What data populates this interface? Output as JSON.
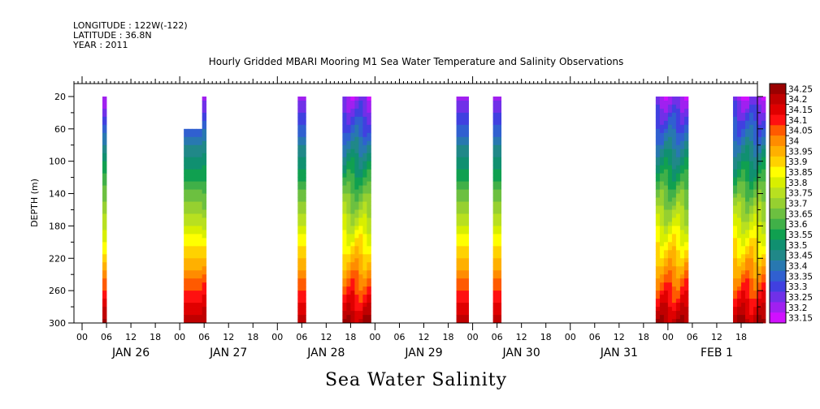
{
  "header": {
    "longitude": "LONGITUDE : 122W(-122)",
    "latitude": "LATITUDE : 36.8N",
    "year": "YEAR : 2011"
  },
  "chart_data": {
    "type": "heatmap",
    "title": "Hourly Gridded MBARI Mooring M1 Sea Water Temperature and Salinity Observations",
    "ylabel": "DEPTH (m)",
    "variable_label": "Sea Water Salinity",
    "x_tick_labels": [
      "00",
      "06",
      "12",
      "18",
      "00",
      "06",
      "12",
      "18",
      "00",
      "06",
      "12",
      "18",
      "00",
      "06",
      "12",
      "18",
      "00",
      "06",
      "12",
      "18",
      "00",
      "06",
      "12",
      "18",
      "00",
      "06",
      "12",
      "18"
    ],
    "day_labels": [
      "JAN 26",
      "JAN 27",
      "JAN 28",
      "JAN 29",
      "JAN 30",
      "JAN 31",
      "FEB  1"
    ],
    "x_range_hours": [
      -2,
      166
    ],
    "y_tick_labels": [
      "20",
      "60",
      "100",
      "140",
      "180",
      "220",
      "260",
      "300"
    ],
    "ylim": [
      300,
      4
    ],
    "colorbar": {
      "levels": [
        "34.25",
        "34.2",
        "34.15",
        "34.1",
        "34.05",
        "34",
        "33.95",
        "33.9",
        "33.85",
        "33.8",
        "33.75",
        "33.7",
        "33.65",
        "33.6",
        "33.55",
        "33.5",
        "33.45",
        "33.4",
        "33.35",
        "33.3",
        "33.25",
        "33.2",
        "33.15"
      ],
      "colors": [
        "#9a0000",
        "#c00000",
        "#e00000",
        "#ff1010",
        "#ff5a00",
        "#ff8c00",
        "#ffb000",
        "#ffd200",
        "#ffff00",
        "#d8ef00",
        "#b8e020",
        "#96d030",
        "#6cc040",
        "#40b048",
        "#10a050",
        "#109070",
        "#208888",
        "#2878b0",
        "#3060d0",
        "#4040e0",
        "#7030e8",
        "#a020f0",
        "#d010ff"
      ]
    },
    "segments": [
      {
        "start_hour": 5.0,
        "end_hour": 6.0,
        "top_depth": 20,
        "texture": "thin"
      },
      {
        "start_hour": 25.0,
        "end_hour": 29.5,
        "top_depth": 60,
        "texture": "smooth"
      },
      {
        "start_hour": 29.5,
        "end_hour": 30.5,
        "top_depth": 20,
        "texture": "thin"
      },
      {
        "start_hour": 53.0,
        "end_hour": 55.0,
        "top_depth": 20,
        "texture": "smooth"
      },
      {
        "start_hour": 64.0,
        "end_hour": 71.0,
        "top_depth": 20,
        "texture": "wavy"
      },
      {
        "start_hour": 92.0,
        "end_hour": 95.0,
        "top_depth": 20,
        "texture": "smooth"
      },
      {
        "start_hour": 101.0,
        "end_hour": 103.0,
        "top_depth": 20,
        "texture": "smooth"
      },
      {
        "start_hour": 141.0,
        "end_hour": 149.0,
        "top_depth": 20,
        "texture": "wavy"
      },
      {
        "start_hour": 160.0,
        "end_hour": 168.0,
        "top_depth": 20,
        "texture": "wavy"
      }
    ]
  }
}
